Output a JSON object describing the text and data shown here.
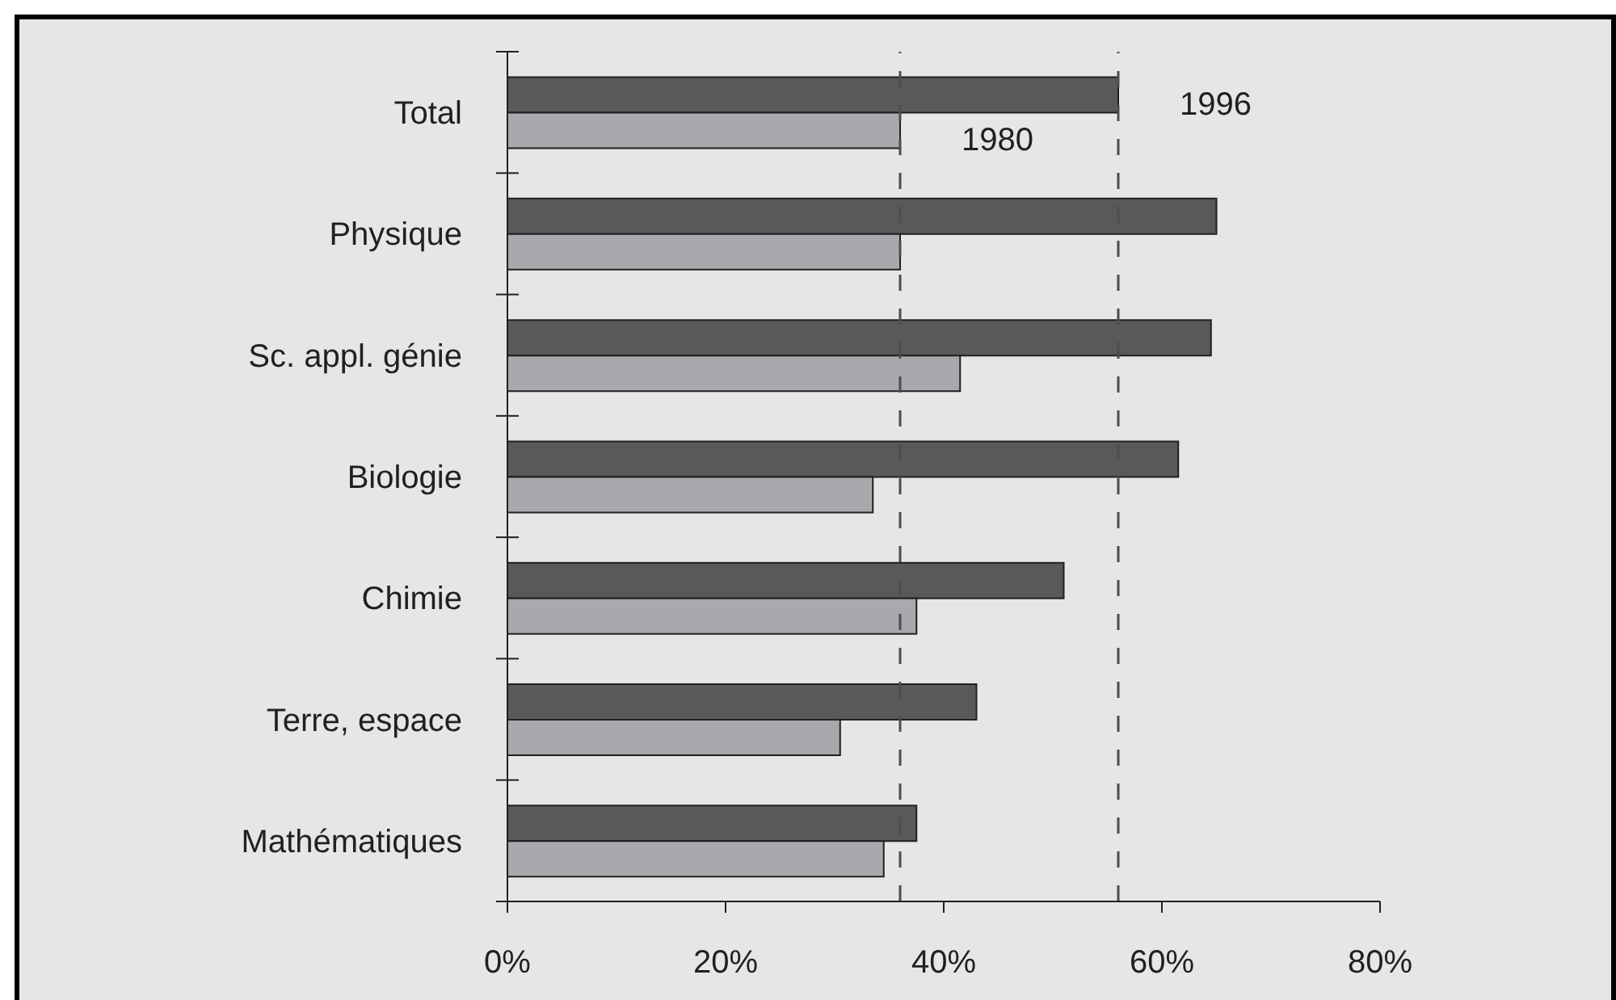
{
  "chart_data": {
    "type": "bar",
    "orientation": "horizontal",
    "categories": [
      "Total",
      "Physique",
      "Sc. appl. génie",
      "Biologie",
      "Chimie",
      "Terre, espace",
      "Mathématiques"
    ],
    "series": [
      {
        "name": "1996",
        "color": "#58595b",
        "values": [
          56,
          65,
          64.5,
          61.5,
          51,
          43,
          37.5
        ]
      },
      {
        "name": "1980",
        "color": "#a7a9ac",
        "values": [
          36,
          36,
          41.5,
          33.5,
          37.5,
          30.5,
          34.5
        ]
      }
    ],
    "xlim": [
      0,
      80
    ],
    "xticks": [
      {
        "value": 0,
        "label": "0%"
      },
      {
        "value": 20,
        "label": "20%"
      },
      {
        "value": 40,
        "label": "40%"
      },
      {
        "value": 60,
        "label": "60%"
      },
      {
        "value": 80,
        "label": "80%"
      }
    ],
    "ref_lines": [
      {
        "axis": "x",
        "value": 36,
        "line_style": "dashed",
        "color": "#4d4d4f"
      },
      {
        "axis": "x",
        "value": 56,
        "line_style": "dashed",
        "color": "#4d4d4f"
      }
    ]
  }
}
